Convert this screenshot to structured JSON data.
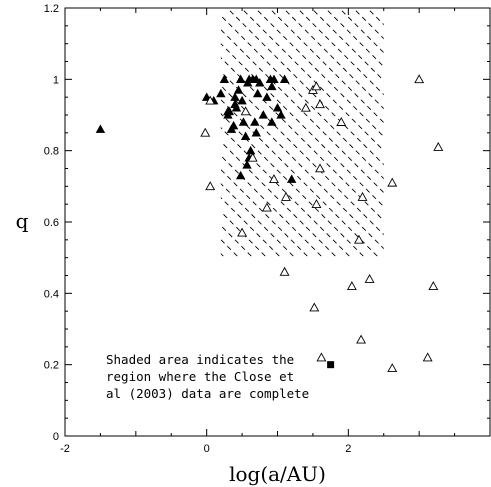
{
  "chart_data": {
    "type": "scatter",
    "title": "",
    "xlabel": "log(a/AU)",
    "ylabel": "q",
    "xlim": [
      -2,
      4
    ],
    "ylim": [
      0,
      1.2
    ],
    "xticks": [
      -2,
      0,
      2
    ],
    "yticks": [
      0,
      0.2,
      0.4,
      0.6,
      0.8,
      1,
      1.2
    ],
    "xtick_labels": [
      "-2",
      "0",
      "2"
    ],
    "ytick_labels": [
      "0",
      "0.2",
      "0.4",
      "0.6",
      "0.8",
      "1",
      "1.2"
    ],
    "grid": false,
    "shaded_region": {
      "x": [
        0.2,
        2.5
      ],
      "y": [
        0.5,
        1.2
      ]
    },
    "annotation": [
      "Shaded area indicates the",
      "region where the Close et",
      "al (2003) data are complete"
    ],
    "series": [
      {
        "marker": "filled-triangle",
        "points": [
          [
            -1.5,
            0.86
          ],
          [
            0.0,
            0.95
          ],
          [
            0.1,
            0.94
          ],
          [
            0.2,
            0.96
          ],
          [
            0.25,
            1.0
          ],
          [
            0.3,
            0.9
          ],
          [
            0.32,
            0.91
          ],
          [
            0.35,
            0.86
          ],
          [
            0.38,
            0.87
          ],
          [
            0.4,
            0.95
          ],
          [
            0.42,
            0.92
          ],
          [
            0.45,
            0.97
          ],
          [
            0.48,
            1.0
          ],
          [
            0.5,
            0.94
          ],
          [
            0.52,
            0.88
          ],
          [
            0.55,
            0.84
          ],
          [
            0.58,
            0.99
          ],
          [
            0.6,
            1.0
          ],
          [
            0.62,
            0.8
          ],
          [
            0.65,
            1.0
          ],
          [
            0.68,
            0.88
          ],
          [
            0.7,
            1.0
          ],
          [
            0.72,
            0.96
          ],
          [
            0.75,
            0.99
          ],
          [
            0.8,
            0.9
          ],
          [
            0.85,
            0.95
          ],
          [
            0.9,
            1.0
          ],
          [
            0.92,
            0.98
          ],
          [
            0.95,
            1.0
          ],
          [
            1.0,
            0.92
          ],
          [
            1.05,
            0.9
          ],
          [
            1.1,
            1.0
          ],
          [
            0.48,
            0.73
          ],
          [
            0.57,
            0.76
          ],
          [
            0.92,
            0.88
          ],
          [
            1.2,
            0.72
          ],
          [
            0.6,
            0.78
          ],
          [
            0.4,
            0.93
          ],
          [
            0.3,
            0.91
          ],
          [
            0.7,
            0.85
          ]
        ]
      },
      {
        "marker": "open-triangle",
        "points": [
          [
            -0.02,
            0.85
          ],
          [
            0.05,
            0.7
          ],
          [
            0.05,
            0.94
          ],
          [
            0.5,
            0.57
          ],
          [
            0.55,
            0.91
          ],
          [
            0.65,
            0.78
          ],
          [
            0.85,
            0.64
          ],
          [
            0.95,
            0.72
          ],
          [
            1.1,
            0.46
          ],
          [
            1.12,
            0.67
          ],
          [
            1.4,
            0.92
          ],
          [
            1.5,
            0.97
          ],
          [
            1.55,
            0.98
          ],
          [
            1.55,
            0.65
          ],
          [
            1.6,
            0.93
          ],
          [
            1.6,
            0.75
          ],
          [
            1.52,
            0.36
          ],
          [
            1.62,
            0.22
          ],
          [
            1.9,
            0.88
          ],
          [
            2.05,
            0.42
          ],
          [
            2.15,
            0.55
          ],
          [
            2.18,
            0.27
          ],
          [
            2.2,
            0.67
          ],
          [
            2.3,
            0.44
          ],
          [
            2.62,
            0.71
          ],
          [
            2.62,
            0.19
          ],
          [
            3.0,
            1.0
          ],
          [
            3.12,
            0.22
          ],
          [
            3.2,
            0.42
          ],
          [
            3.27,
            0.81
          ]
        ]
      },
      {
        "marker": "filled-square",
        "points": [
          [
            1.75,
            0.2
          ]
        ]
      }
    ]
  }
}
